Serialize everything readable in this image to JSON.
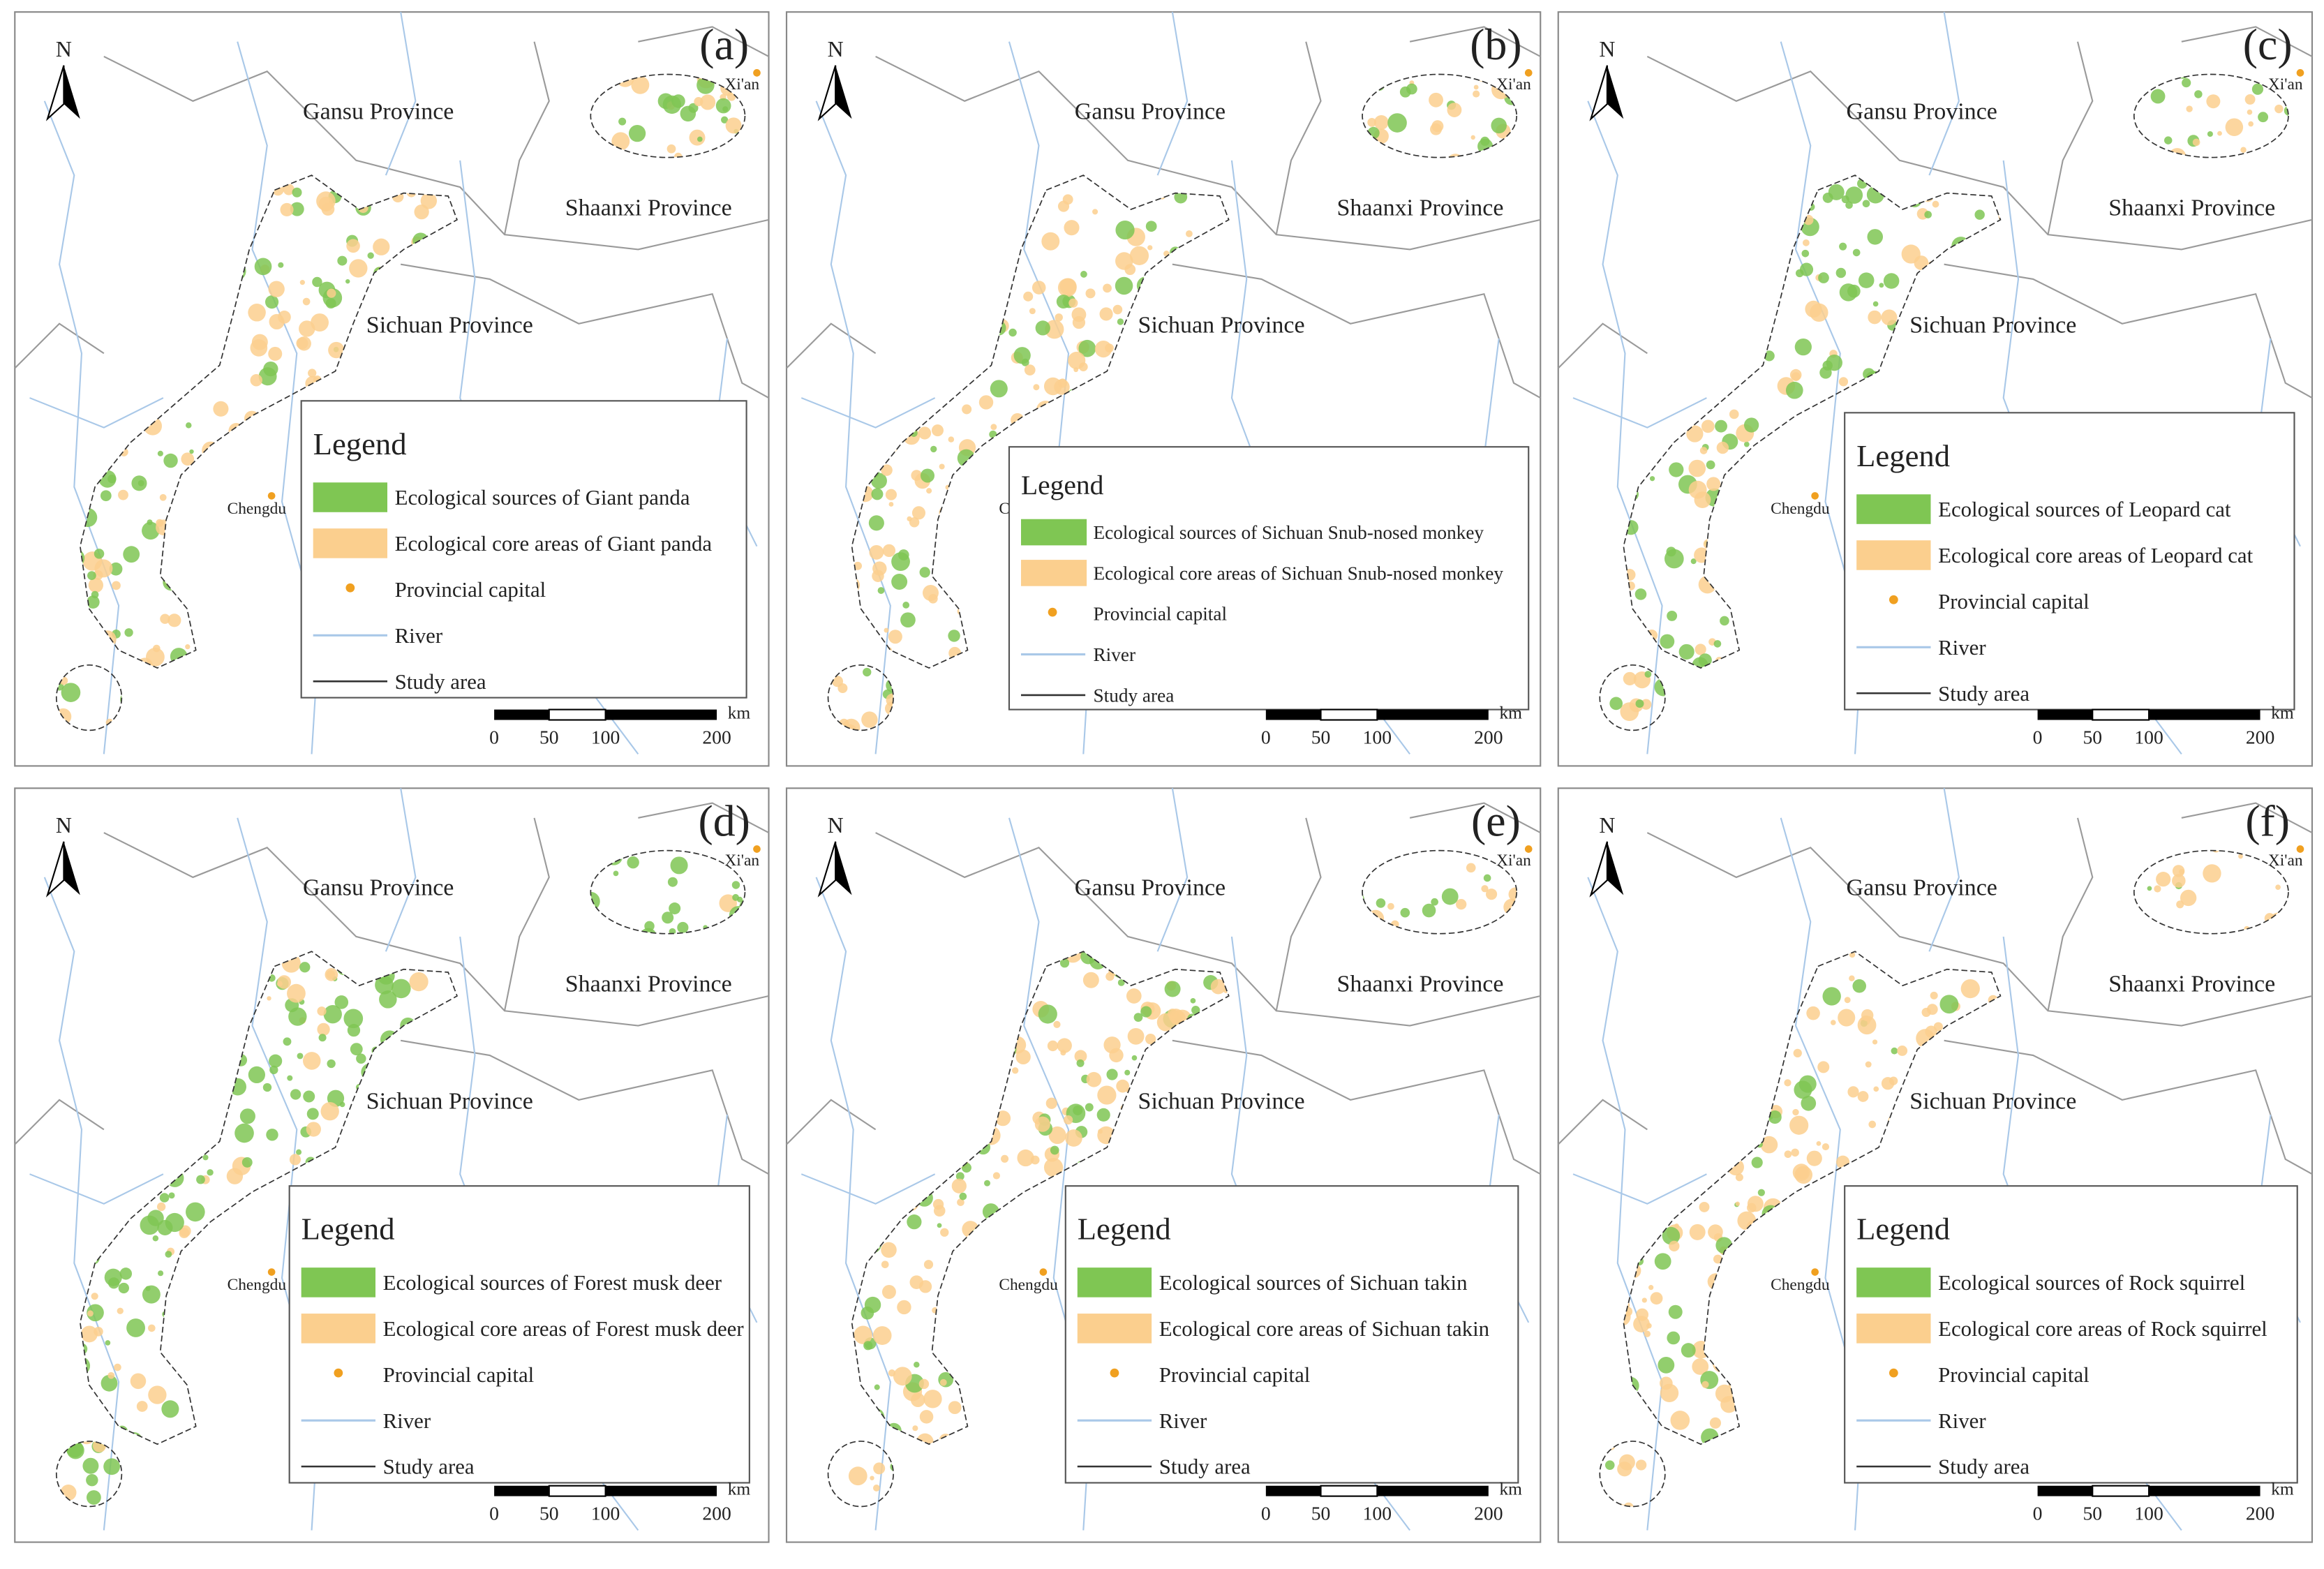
{
  "figure": {
    "common": {
      "north": "N",
      "provinces": [
        "Gansu Province",
        "Shaanxi Province",
        "Sichuan Province"
      ],
      "cities": [
        "Xi'an",
        "Chengdu"
      ],
      "legend_title": "Legend",
      "legend_common": [
        "Provincial capital",
        "River",
        "Study area"
      ],
      "scale_unit": "km",
      "scale_labels": [
        "0",
        "50",
        "100",
        "200"
      ]
    },
    "panels": [
      {
        "label": "(a)",
        "sources": "Ecological sources of Giant panda",
        "core": "Ecological core areas of Giant panda"
      },
      {
        "label": "(b)",
        "sources": "Ecological sources of Sichuan Snub-nosed monkey",
        "core": "Ecological core areas of Sichuan Snub-nosed monkey"
      },
      {
        "label": "(c)",
        "sources": "Ecological sources of Leopard cat",
        "core": "Ecological core areas of Leopard cat"
      },
      {
        "label": "(d)",
        "sources": "Ecological sources of Forest musk deer",
        "core": "Ecological core areas of Forest musk deer"
      },
      {
        "label": "(e)",
        "sources": "Ecological sources of Sichuan takin",
        "core": "Ecological core areas of Sichuan takin"
      },
      {
        "label": "(f)",
        "sources": "Ecological sources of Rock squirrel",
        "core": "Ecological core areas of Rock squirrel"
      }
    ]
  }
}
